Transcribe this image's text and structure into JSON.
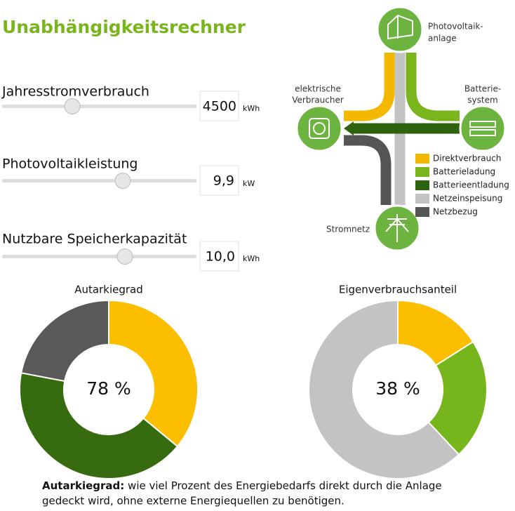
{
  "title": "Unabhängigkeitsrechner",
  "inputs": [
    {
      "label": "Jahresstromverbrauch",
      "value": "4500",
      "unit": "kWh"
    },
    {
      "label": "Photovoltaikleistung",
      "value": "9,9",
      "unit": "kW"
    },
    {
      "label": "Nutzbare Speicherkapazität",
      "value": "10,0",
      "unit": "kWh"
    }
  ],
  "diagram": {
    "nodes": [
      {
        "lines": [
          "Photovoltaik-",
          "anlage"
        ]
      },
      {
        "lines": [
          "elektrische",
          "Verbraucher"
        ]
      },
      {
        "lines": [
          "Batterie-",
          "system"
        ]
      },
      {
        "lines": [
          "Stromnetz"
        ]
      }
    ],
    "legend": [
      {
        "label": "Direktverbrauch",
        "color": "#f5b800"
      },
      {
        "label": "Batterieladung",
        "color": "#7ab51d"
      },
      {
        "label": "Batterieentladung",
        "color": "#2e6410"
      },
      {
        "label": "Netzeinspeisung",
        "color": "#c3c3c3"
      },
      {
        "label": "Netzbezug",
        "color": "#555555"
      }
    ]
  },
  "chart_data": [
    {
      "type": "pie",
      "title": "Autarkiegrad",
      "center_label": "78 %",
      "values": [
        36,
        42,
        22
      ],
      "colors": [
        "#fcbf00",
        "#376b10",
        "#595959"
      ]
    },
    {
      "type": "pie",
      "title": "Eigenverbrauchsanteil",
      "center_label": "38 %",
      "values": [
        16,
        22,
        62
      ],
      "colors": [
        "#fcbf00",
        "#77b51d",
        "#c3c3c3"
      ]
    }
  ],
  "footnote": {
    "term": "Autarkiegrad:",
    "lines": [
      "wie viel Prozent des Energiebedarfs direkt durch die Anlage",
      "gedeckt wird, ohne externe Energiequellen zu benötigen."
    ]
  }
}
